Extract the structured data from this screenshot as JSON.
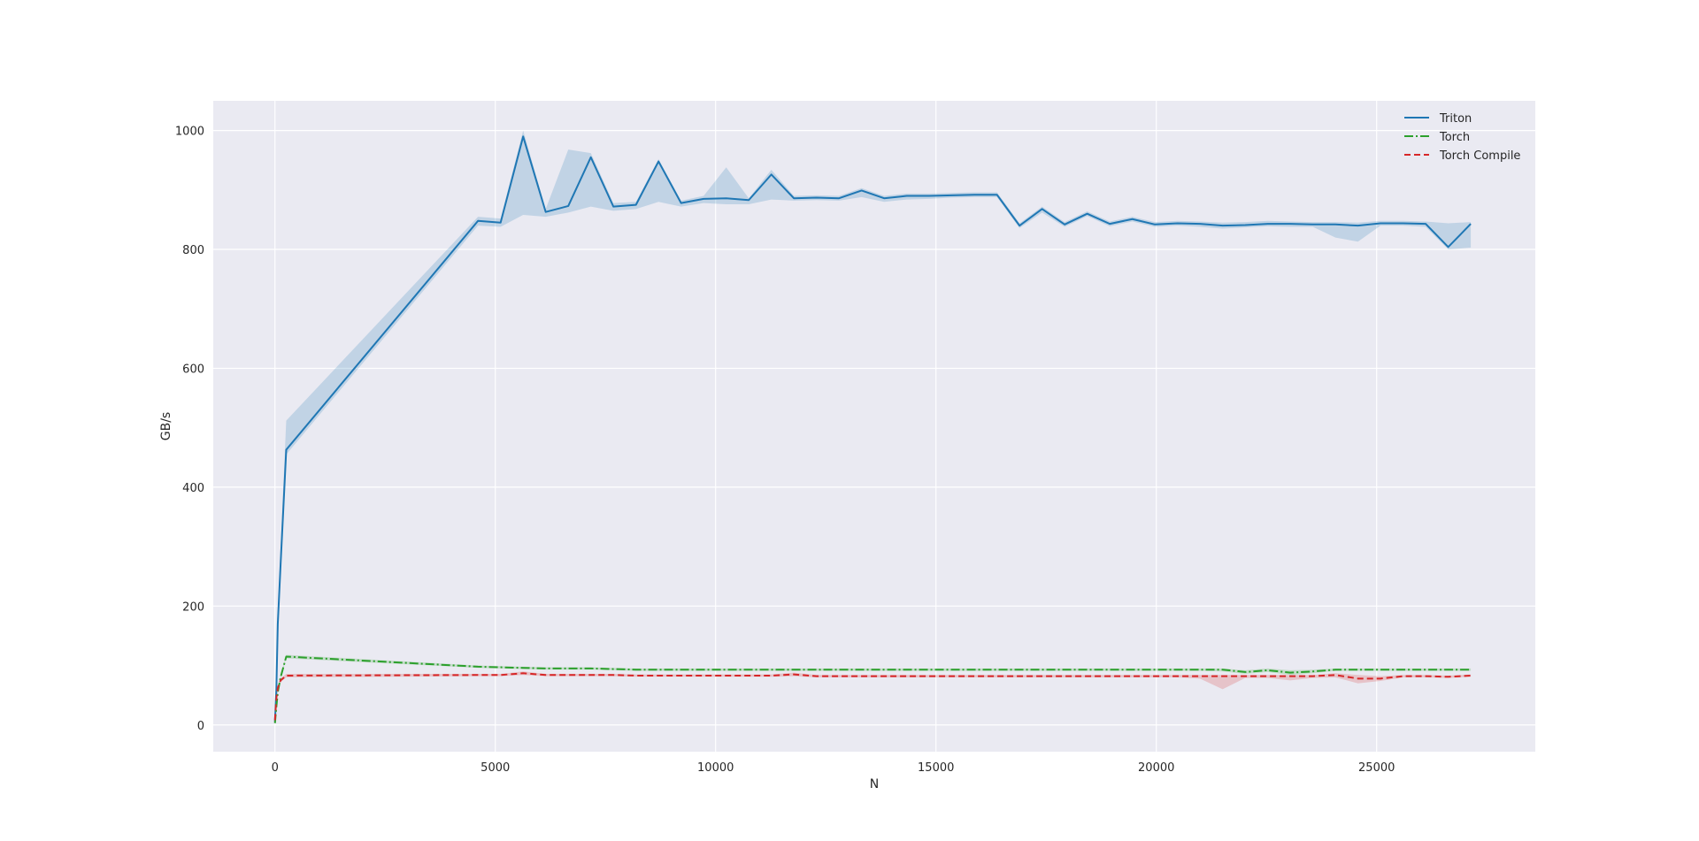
{
  "chart_data": {
    "type": "line",
    "title": "",
    "xlabel": "N",
    "ylabel": "GB/s",
    "xlim": [
      -1400,
      28600
    ],
    "ylim": [
      -45,
      1050
    ],
    "xticks": [
      0,
      5000,
      10000,
      15000,
      20000,
      25000
    ],
    "yticks": [
      0,
      200,
      400,
      600,
      800,
      1000
    ],
    "grid": true,
    "legend_position": "top-right",
    "background": "#eaeaf2",
    "series": [
      {
        "name": "Triton",
        "color": "#1f77b4",
        "dash": "solid",
        "band_color": "#1f77b4",
        "x": [
          0,
          32,
          64,
          128,
          256,
          4608,
          5120,
          5632,
          6144,
          6656,
          7168,
          7680,
          8192,
          8704,
          9216,
          9728,
          10240,
          10752,
          11264,
          11776,
          12288,
          12800,
          13312,
          13824,
          14336,
          14848,
          15360,
          15872,
          16384,
          16896,
          17408,
          17920,
          18432,
          18944,
          19456,
          19968,
          20480,
          20992,
          21504,
          22016,
          22528,
          23040,
          23552,
          24064,
          24576,
          25088,
          25600,
          26112,
          26624,
          27136
        ],
        "y": [
          5,
          60,
          170,
          270,
          463,
          848,
          845,
          990,
          863,
          873,
          955,
          872,
          875,
          948,
          878,
          885,
          886,
          883,
          926,
          886,
          887,
          886,
          899,
          886,
          890,
          890,
          891,
          892,
          892,
          840,
          868,
          842,
          860,
          843,
          851,
          842,
          844,
          843,
          840,
          841,
          843,
          843,
          842,
          842,
          840,
          844,
          844,
          843,
          804,
          843
        ],
        "lower": [
          4,
          55,
          160,
          260,
          455,
          840,
          838,
          858,
          855,
          862,
          872,
          865,
          868,
          880,
          872,
          878,
          876,
          876,
          884,
          882,
          883,
          882,
          888,
          880,
          884,
          885,
          887,
          888,
          888,
          836,
          862,
          838,
          856,
          839,
          847,
          838,
          840,
          838,
          835,
          837,
          839,
          838,
          838,
          820,
          813,
          840,
          840,
          838,
          800,
          803
        ],
        "upper": [
          6,
          66,
          185,
          300,
          512,
          855,
          852,
          1000,
          868,
          968,
          962,
          878,
          880,
          952,
          882,
          890,
          938,
          886,
          934,
          890,
          891,
          890,
          903,
          890,
          894,
          894,
          895,
          896,
          896,
          844,
          872,
          846,
          864,
          847,
          855,
          846,
          848,
          847,
          845,
          846,
          848,
          847,
          846,
          846,
          845,
          848,
          848,
          847,
          844,
          846
        ]
      },
      {
        "name": "Torch",
        "color": "#2ca02c",
        "dash": "10,3,2,3",
        "band_color": "#2ca02c",
        "x": [
          0,
          32,
          64,
          128,
          256,
          4608,
          5120,
          5632,
          6144,
          6656,
          7168,
          7680,
          8192,
          8704,
          9216,
          9728,
          10240,
          10752,
          11264,
          11776,
          12288,
          12800,
          13312,
          13824,
          14336,
          14848,
          15360,
          15872,
          16384,
          16896,
          17408,
          17920,
          18432,
          18944,
          19456,
          19968,
          20480,
          20992,
          21504,
          22016,
          22528,
          23040,
          23552,
          24064,
          24576,
          25088,
          25600,
          26112,
          26624,
          27136
        ],
        "y": [
          3,
          30,
          55,
          80,
          115,
          98,
          97,
          96,
          95,
          95,
          95,
          94,
          93,
          93,
          93,
          93,
          93,
          93,
          93,
          93,
          93,
          93,
          93,
          93,
          93,
          93,
          93,
          93,
          93,
          93,
          93,
          93,
          93,
          93,
          93,
          93,
          93,
          93,
          93,
          89,
          92,
          88,
          90,
          93,
          93,
          93,
          93,
          93,
          93,
          93
        ],
        "lower": [
          2,
          28,
          52,
          77,
          112,
          96,
          95,
          94,
          93,
          93,
          93,
          92,
          91,
          91,
          91,
          91,
          91,
          91,
          91,
          91,
          91,
          91,
          91,
          91,
          91,
          91,
          91,
          91,
          91,
          91,
          91,
          91,
          91,
          91,
          91,
          91,
          91,
          91,
          90,
          86,
          89,
          84,
          87,
          91,
          91,
          91,
          91,
          91,
          91,
          91
        ],
        "upper": [
          4,
          32,
          58,
          83,
          118,
          100,
          99,
          98,
          97,
          97,
          97,
          96,
          95,
          95,
          95,
          95,
          95,
          95,
          95,
          95,
          95,
          95,
          95,
          95,
          95,
          95,
          95,
          95,
          95,
          95,
          95,
          95,
          95,
          95,
          95,
          95,
          95,
          95,
          95,
          92,
          95,
          92,
          93,
          95,
          95,
          95,
          95,
          95,
          95,
          95
        ]
      },
      {
        "name": "Torch Compile",
        "color": "#d62728",
        "dash": "7,4",
        "band_color": "#d62728",
        "x": [
          0,
          32,
          64,
          128,
          256,
          4608,
          5120,
          5632,
          6144,
          6656,
          7168,
          7680,
          8192,
          8704,
          9216,
          9728,
          10240,
          10752,
          11264,
          11776,
          12288,
          12800,
          13312,
          13824,
          14336,
          14848,
          15360,
          15872,
          16384,
          16896,
          17408,
          17920,
          18432,
          18944,
          19456,
          19968,
          20480,
          20992,
          21504,
          22016,
          22528,
          23040,
          23552,
          24064,
          24576,
          25088,
          25600,
          26112,
          26624,
          27136
        ],
        "y": [
          8,
          45,
          62,
          75,
          83,
          84,
          84,
          87,
          84,
          84,
          84,
          84,
          83,
          83,
          83,
          83,
          83,
          83,
          83,
          85,
          82,
          82,
          82,
          82,
          82,
          82,
          82,
          82,
          82,
          82,
          82,
          82,
          82,
          82,
          82,
          82,
          82,
          82,
          82,
          82,
          82,
          82,
          82,
          84,
          78,
          78,
          82,
          82,
          81,
          83
        ],
        "lower": [
          6,
          42,
          58,
          72,
          80,
          82,
          82,
          84,
          82,
          82,
          82,
          82,
          81,
          81,
          81,
          81,
          81,
          81,
          81,
          82,
          80,
          80,
          80,
          80,
          80,
          80,
          80,
          80,
          80,
          80,
          80,
          80,
          80,
          80,
          80,
          80,
          80,
          78,
          60,
          79,
          79,
          75,
          79,
          80,
          70,
          74,
          80,
          80,
          79,
          81
        ],
        "upper": [
          10,
          48,
          66,
          78,
          86,
          86,
          86,
          90,
          86,
          86,
          86,
          86,
          85,
          85,
          85,
          85,
          85,
          85,
          85,
          88,
          84,
          84,
          84,
          84,
          84,
          84,
          84,
          84,
          84,
          84,
          84,
          84,
          84,
          84,
          84,
          84,
          84,
          84,
          84,
          84,
          84,
          84,
          84,
          87,
          84,
          82,
          84,
          84,
          83,
          85
        ]
      }
    ]
  }
}
